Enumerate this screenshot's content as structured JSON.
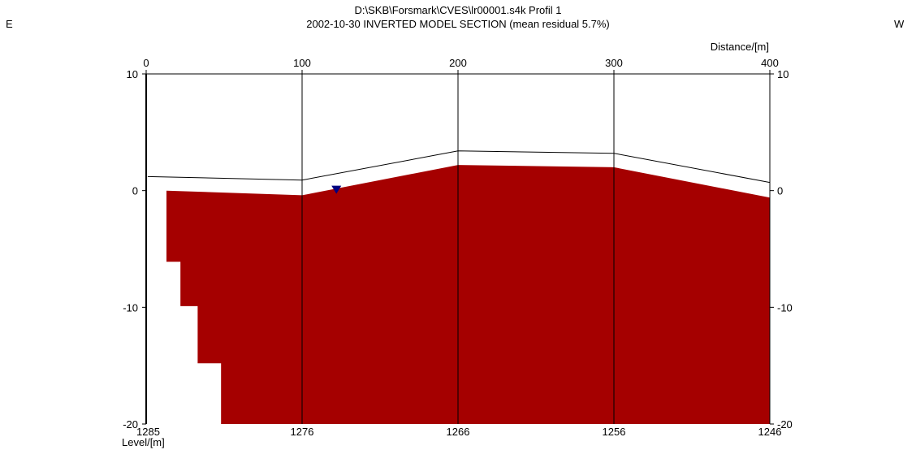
{
  "title_line1": "D:\\SKB\\Forsmark\\CVES\\lr00001.s4k Profil 1",
  "title_line2": "2002-10-30 INVERTED MODEL SECTION (mean residual 5.7%)",
  "side_left": "E",
  "side_right": "W",
  "chart_data": {
    "type": "area",
    "xlabel": "Distance/[m]",
    "ylabel": "Level/[m]",
    "xlim": [
      0,
      400
    ],
    "ylim": [
      -20,
      10
    ],
    "x_ticks": [
      0,
      100,
      200,
      300,
      400
    ],
    "y_ticks": [
      10,
      0,
      -10,
      -20
    ],
    "y_tick_labels_left": [
      "10",
      "0",
      "-10",
      "-20"
    ],
    "y_tick_labels_right": [
      "10",
      "0",
      "-10",
      "-20"
    ],
    "bottom_tick_labels": [
      "1285",
      "1276",
      "1266",
      "1256",
      "1246"
    ],
    "grid": "vertical lines at x ticks",
    "fill_color": "#a50000",
    "marker_color": "#000080",
    "topography": [
      {
        "x": 1,
        "y": 1.2
      },
      {
        "x": 100,
        "y": 0.9
      },
      {
        "x": 200,
        "y": 3.4
      },
      {
        "x": 300,
        "y": 3.2
      },
      {
        "x": 400,
        "y": 0.7
      }
    ],
    "model_section": [
      {
        "x": 13,
        "y": -6.1
      },
      {
        "x": 13,
        "y": 0.0
      },
      {
        "x": 100,
        "y": -0.4
      },
      {
        "x": 200,
        "y": 2.2
      },
      {
        "x": 300,
        "y": 2.0
      },
      {
        "x": 400,
        "y": -0.6
      },
      {
        "x": 400,
        "y": -20
      },
      {
        "x": 48,
        "y": -20
      },
      {
        "x": 48,
        "y": -14.8
      },
      {
        "x": 33,
        "y": -14.8
      },
      {
        "x": 33,
        "y": -9.9
      },
      {
        "x": 22,
        "y": -9.9
      },
      {
        "x": 22,
        "y": -6.1
      }
    ],
    "markers": [
      {
        "x": 122,
        "y": 0.0
      }
    ]
  }
}
